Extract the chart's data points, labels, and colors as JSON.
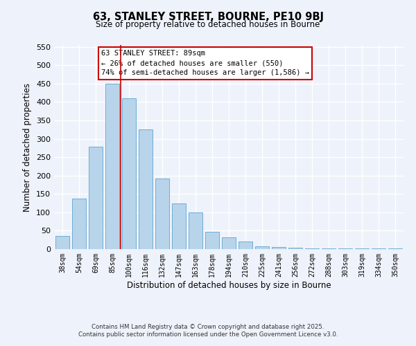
{
  "title": "63, STANLEY STREET, BOURNE, PE10 9BJ",
  "subtitle": "Size of property relative to detached houses in Bourne",
  "xlabel": "Distribution of detached houses by size in Bourne",
  "ylabel": "Number of detached properties",
  "categories": [
    "38sqm",
    "54sqm",
    "69sqm",
    "85sqm",
    "100sqm",
    "116sqm",
    "132sqm",
    "147sqm",
    "163sqm",
    "178sqm",
    "194sqm",
    "210sqm",
    "225sqm",
    "241sqm",
    "256sqm",
    "272sqm",
    "288sqm",
    "303sqm",
    "319sqm",
    "334sqm",
    "350sqm"
  ],
  "values": [
    35,
    137,
    278,
    450,
    410,
    325,
    192,
    125,
    100,
    47,
    32,
    20,
    7,
    5,
    3,
    2,
    1,
    1,
    1,
    1,
    1
  ],
  "bar_color": "#b8d4ea",
  "bar_edge_color": "#6aaed6",
  "vline_color": "#cc0000",
  "vline_index": 3.5,
  "annotation_box_text": "63 STANLEY STREET: 89sqm\n← 26% of detached houses are smaller (550)\n74% of semi-detached houses are larger (1,586) →",
  "ylim": [
    0,
    555
  ],
  "yticks": [
    0,
    50,
    100,
    150,
    200,
    250,
    300,
    350,
    400,
    450,
    500,
    550
  ],
  "background_color": "#eef2fa",
  "grid_color": "#ffffff",
  "footer_line1": "Contains HM Land Registry data © Crown copyright and database right 2025.",
  "footer_line2": "Contains public sector information licensed under the Open Government Licence v3.0."
}
